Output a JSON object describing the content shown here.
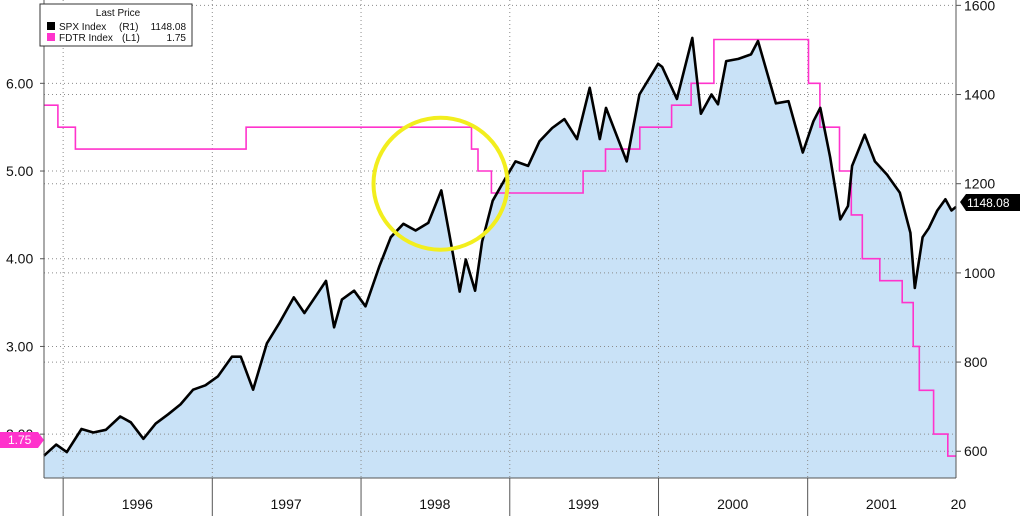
{
  "chart_data": {
    "type": "line",
    "legend": {
      "title": "Last Price",
      "placement": "top-left",
      "entries": [
        {
          "name": "SPX Index",
          "axis": "(R1)",
          "last": "1148.08",
          "color": "#000000"
        },
        {
          "name": "FDTR Index",
          "axis": "(L1)",
          "last": "1.75",
          "color": "#ff33cc"
        }
      ]
    },
    "last_value_badges": {
      "spx": "1148.08",
      "fdtr": "1.75"
    },
    "x_axis": {
      "range": [
        "1995-11-15",
        "2001-12-31"
      ],
      "tick_dates": [
        "1996-01-01",
        "1997-01-01",
        "1998-01-01",
        "1999-01-01",
        "2000-01-01",
        "2001-01-01",
        "2002-01-01"
      ],
      "labels": [
        {
          "text": "1996",
          "date": "1996-07-01"
        },
        {
          "text": "1997",
          "date": "1997-07-01"
        },
        {
          "text": "1998",
          "date": "1998-07-01"
        },
        {
          "text": "1999",
          "date": "1999-07-01"
        },
        {
          "text": "2000",
          "date": "2000-07-01"
        },
        {
          "text": "2001",
          "date": "2001-07-01"
        },
        {
          "text": "20",
          "date": "2002-01-06"
        }
      ]
    },
    "left_axis": {
      "ticks": [
        "2.00",
        "3.00",
        "4.00",
        "5.00",
        "6.00"
      ],
      "range": [
        1.5,
        6.95
      ]
    },
    "right_axis": {
      "ticks": [
        "600",
        "800",
        "1000",
        "1200",
        "1400",
        "1600"
      ],
      "range": [
        540,
        1612
      ]
    },
    "grid": true,
    "annotation": {
      "shape": "circle",
      "color": "#f2ee1e",
      "center_date": "1998-07-15",
      "center_value_spx": 1200
    },
    "series": [
      {
        "name": "FDTR Index",
        "axis": "left",
        "style": "step",
        "color": "#ff33cc",
        "points": [
          [
            "1995-11-15",
            5.75
          ],
          [
            "1995-12-19",
            5.5
          ],
          [
            "1996-01-31",
            5.25
          ],
          [
            "1997-03-25",
            5.5
          ],
          [
            "1998-09-29",
            5.25
          ],
          [
            "1998-10-15",
            5.0
          ],
          [
            "1998-11-17",
            4.75
          ],
          [
            "1999-06-30",
            5.0
          ],
          [
            "1999-08-24",
            5.25
          ],
          [
            "1999-11-16",
            5.5
          ],
          [
            "2000-02-02",
            5.75
          ],
          [
            "2000-03-21",
            6.0
          ],
          [
            "2000-05-16",
            6.5
          ],
          [
            "2001-01-03",
            6.0
          ],
          [
            "2001-01-31",
            5.5
          ],
          [
            "2001-03-20",
            5.0
          ],
          [
            "2001-04-18",
            4.5
          ],
          [
            "2001-05-15",
            4.0
          ],
          [
            "2001-06-27",
            3.75
          ],
          [
            "2001-08-21",
            3.5
          ],
          [
            "2001-09-17",
            3.0
          ],
          [
            "2001-10-02",
            2.5
          ],
          [
            "2001-11-06",
            2.0
          ],
          [
            "2001-12-11",
            1.75
          ],
          [
            "2001-12-31",
            1.75
          ]
        ]
      },
      {
        "name": "SPX Index",
        "axis": "right",
        "style": "line-area",
        "color": "#000000",
        "area_color": "#c9e2f7",
        "points": [
          [
            "1995-11-15",
            590
          ],
          [
            "1995-12-15",
            615
          ],
          [
            "1996-01-10",
            598
          ],
          [
            "1996-02-15",
            650
          ],
          [
            "1996-03-15",
            642
          ],
          [
            "1996-04-15",
            648
          ],
          [
            "1996-05-20",
            678
          ],
          [
            "1996-06-15",
            665
          ],
          [
            "1996-07-16",
            628
          ],
          [
            "1996-08-15",
            662
          ],
          [
            "1996-09-15",
            683
          ],
          [
            "1996-10-15",
            705
          ],
          [
            "1996-11-15",
            738
          ],
          [
            "1996-12-15",
            748
          ],
          [
            "1997-01-15",
            768
          ],
          [
            "1997-02-18",
            812
          ],
          [
            "1997-03-12",
            812
          ],
          [
            "1997-04-11",
            738
          ],
          [
            "1997-05-15",
            842
          ],
          [
            "1997-06-15",
            888
          ],
          [
            "1997-07-20",
            945
          ],
          [
            "1997-08-15",
            910
          ],
          [
            "1997-09-15",
            952
          ],
          [
            "1997-10-07",
            982
          ],
          [
            "1997-10-27",
            878
          ],
          [
            "1997-11-15",
            940
          ],
          [
            "1997-12-15",
            960
          ],
          [
            "1998-01-12",
            925
          ],
          [
            "1998-02-15",
            1015
          ],
          [
            "1998-03-15",
            1080
          ],
          [
            "1998-04-15",
            1110
          ],
          [
            "1998-05-15",
            1095
          ],
          [
            "1998-06-15",
            1112
          ],
          [
            "1998-07-17",
            1185
          ],
          [
            "1998-08-05",
            1090
          ],
          [
            "1998-08-31",
            958
          ],
          [
            "1998-09-15",
            1030
          ],
          [
            "1998-10-08",
            960
          ],
          [
            "1998-10-25",
            1070
          ],
          [
            "1998-11-20",
            1162
          ],
          [
            "1998-12-20",
            1210
          ],
          [
            "1999-01-15",
            1250
          ],
          [
            "1999-02-15",
            1240
          ],
          [
            "1999-03-15",
            1295
          ],
          [
            "1999-04-15",
            1325
          ],
          [
            "1999-05-15",
            1345
          ],
          [
            "1999-06-15",
            1300
          ],
          [
            "1999-07-16",
            1415
          ],
          [
            "1999-08-10",
            1300
          ],
          [
            "1999-08-25",
            1370
          ],
          [
            "1999-10-15",
            1250
          ],
          [
            "1999-11-15",
            1400
          ],
          [
            "1999-12-31",
            1469
          ],
          [
            "2000-01-10",
            1462
          ],
          [
            "2000-02-15",
            1390
          ],
          [
            "2000-03-24",
            1527
          ],
          [
            "2000-04-14",
            1357
          ],
          [
            "2000-05-10",
            1400
          ],
          [
            "2000-05-26",
            1378
          ],
          [
            "2000-06-15",
            1475
          ],
          [
            "2000-07-15",
            1480
          ],
          [
            "2000-08-15",
            1490
          ],
          [
            "2000-09-01",
            1520
          ],
          [
            "2000-10-15",
            1380
          ],
          [
            "2000-11-15",
            1385
          ],
          [
            "2000-12-20",
            1270
          ],
          [
            "2001-01-15",
            1340
          ],
          [
            "2001-02-01",
            1370
          ],
          [
            "2001-02-25",
            1260
          ],
          [
            "2001-03-22",
            1120
          ],
          [
            "2001-04-10",
            1150
          ],
          [
            "2001-04-20",
            1240
          ],
          [
            "2001-05-21",
            1310
          ],
          [
            "2001-06-15",
            1250
          ],
          [
            "2001-07-15",
            1220
          ],
          [
            "2001-08-15",
            1180
          ],
          [
            "2001-09-10",
            1090
          ],
          [
            "2001-09-21",
            966
          ],
          [
            "2001-10-10",
            1080
          ],
          [
            "2001-10-25",
            1100
          ],
          [
            "2001-11-15",
            1140
          ],
          [
            "2001-12-05",
            1165
          ],
          [
            "2001-12-20",
            1140
          ],
          [
            "2001-12-31",
            1148.08
          ]
        ]
      }
    ]
  }
}
